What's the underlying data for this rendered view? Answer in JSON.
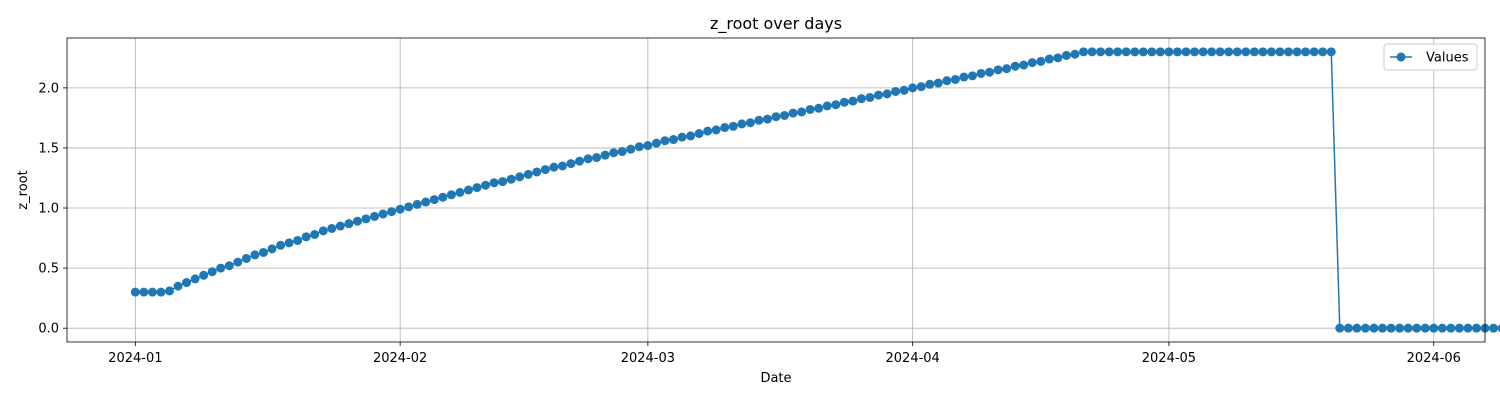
{
  "chart_data": {
    "type": "line",
    "title": "z_root over days",
    "xlabel": "Date",
    "ylabel": "z_root",
    "x_start": "2024-01-01",
    "x_end": "2024-05-30",
    "xlim": [
      "2023-12-24",
      "2024-06-07"
    ],
    "ylim": [
      -0.115,
      2.415
    ],
    "x_ticks": [
      "2024-01-01",
      "2024-02-01",
      "2024-03-01",
      "2024-04-01",
      "2024-05-01",
      "2024-06-01"
    ],
    "x_tick_labels": [
      "2024-01",
      "2024-02",
      "2024-03",
      "2024-04",
      "2024-05",
      "2024-06"
    ],
    "y_ticks": [
      0.0,
      0.5,
      1.0,
      1.5,
      2.0
    ],
    "y_tick_labels": [
      "0.0",
      "0.5",
      "1.0",
      "1.5",
      "2.0"
    ],
    "grid": true,
    "legend_position": "top-right",
    "series": [
      {
        "name": "Values",
        "color": "#1f77b4",
        "marker": "circle",
        "values": [
          0.3,
          0.3,
          0.3,
          0.3,
          0.31,
          0.35,
          0.38,
          0.41,
          0.44,
          0.47,
          0.5,
          0.52,
          0.55,
          0.58,
          0.61,
          0.63,
          0.66,
          0.69,
          0.71,
          0.73,
          0.76,
          0.78,
          0.81,
          0.83,
          0.85,
          0.87,
          0.89,
          0.91,
          0.93,
          0.95,
          0.97,
          0.99,
          1.01,
          1.03,
          1.05,
          1.07,
          1.09,
          1.11,
          1.13,
          1.15,
          1.17,
          1.19,
          1.21,
          1.22,
          1.24,
          1.26,
          1.28,
          1.3,
          1.32,
          1.34,
          1.35,
          1.37,
          1.39,
          1.41,
          1.42,
          1.44,
          1.46,
          1.47,
          1.49,
          1.51,
          1.52,
          1.54,
          1.56,
          1.57,
          1.59,
          1.6,
          1.62,
          1.64,
          1.65,
          1.67,
          1.68,
          1.7,
          1.71,
          1.73,
          1.74,
          1.76,
          1.77,
          1.79,
          1.8,
          1.82,
          1.83,
          1.85,
          1.86,
          1.88,
          1.89,
          1.91,
          1.92,
          1.94,
          1.95,
          1.97,
          1.98,
          2.0,
          2.01,
          2.03,
          2.04,
          2.06,
          2.07,
          2.09,
          2.1,
          2.12,
          2.13,
          2.15,
          2.16,
          2.18,
          2.19,
          2.21,
          2.22,
          2.24,
          2.25,
          2.27,
          2.28,
          2.3,
          2.3,
          2.3,
          2.3,
          2.3,
          2.3,
          2.3,
          2.3,
          2.3,
          2.3,
          2.3,
          2.3,
          2.3,
          2.3,
          2.3,
          2.3,
          2.3,
          2.3,
          2.3,
          2.3,
          2.3,
          2.3,
          2.3,
          2.3,
          2.3,
          2.3,
          2.3,
          2.3,
          2.3,
          2.3,
          0,
          0,
          0,
          0,
          0,
          0,
          0,
          0,
          0,
          0,
          0,
          0,
          0,
          0,
          0,
          0,
          0,
          0,
          0,
          0
        ]
      }
    ]
  }
}
